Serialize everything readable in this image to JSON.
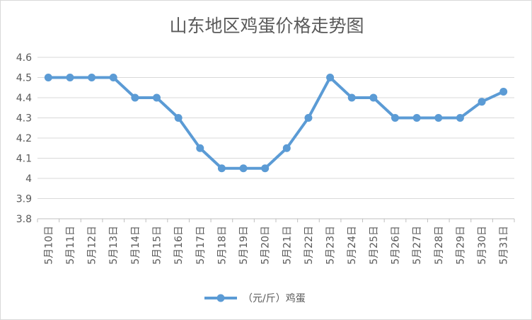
{
  "chart_data": {
    "type": "line",
    "title": "山东地区鸡蛋价格走势图",
    "xlabel": "",
    "ylabel": "",
    "categories": [
      "5月10日",
      "5月11日",
      "5月12日",
      "5月13日",
      "5月14日",
      "5月15日",
      "5月16日",
      "5月17日",
      "5月18日",
      "5月19日",
      "5月20日",
      "5月21日",
      "5月22日",
      "5月23日",
      "5月24日",
      "5月25日",
      "5月26日",
      "5月27日",
      "5月28日",
      "5月29日",
      "5月30日",
      "5月31日"
    ],
    "series": [
      {
        "name": "（元/斤）鸡蛋",
        "color": "#5b9bd5",
        "values": [
          4.5,
          4.5,
          4.5,
          4.5,
          4.4,
          4.4,
          4.3,
          4.15,
          4.05,
          4.05,
          4.05,
          4.15,
          4.3,
          4.5,
          4.4,
          4.4,
          4.3,
          4.3,
          4.3,
          4.3,
          4.38,
          4.43
        ]
      }
    ],
    "ylim": [
      3.8,
      4.6
    ],
    "yticks": [
      "3.8",
      "3.9",
      "4",
      "4.1",
      "4.2",
      "4.3",
      "4.4",
      "4.5",
      "4.6"
    ],
    "grid": true,
    "legend": "bottom",
    "colors": {
      "grid": "#d9d9d9",
      "text": "#595959",
      "axis": "#bfbfbf"
    }
  }
}
